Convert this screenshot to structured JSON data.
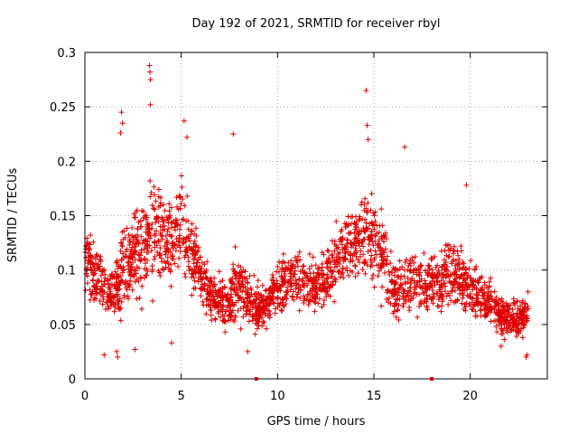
{
  "chart_data": {
    "type": "scatter",
    "title": "Day 192 of 2021, SRMTID for receiver rbyl",
    "xlabel": "GPS time / hours",
    "ylabel": "SRMTID / TECUs",
    "xlim": [
      0,
      24
    ],
    "ylim": [
      0,
      0.3
    ],
    "xticks": [
      "0",
      "5",
      "10",
      "15",
      "20"
    ],
    "xtick_values": [
      0,
      5,
      10,
      15,
      20
    ],
    "yticks": [
      "0",
      "0.05",
      "0.1",
      "0.15",
      "0.2",
      "0.25",
      "0.3"
    ],
    "ytick_values": [
      0,
      0.05,
      0.1,
      0.15,
      0.2,
      0.25,
      0.3
    ],
    "grid": true,
    "legend": "none",
    "marker": "plus",
    "color": "#dd0000",
    "gap_markers_x": [
      8.9,
      18.0
    ],
    "series": [
      {
        "profile_hours": [
          0,
          0.5,
          1,
          1.5,
          2,
          2.5,
          3,
          3.5,
          4,
          4.5,
          5,
          5.5,
          6,
          6.5,
          7,
          7.5,
          8,
          8.5,
          9,
          9.5,
          10,
          10.5,
          11,
          11.5,
          12,
          12.5,
          13,
          13.5,
          14,
          14.5,
          15,
          15.5,
          16,
          16.5,
          17,
          17.5,
          18,
          18.5,
          19,
          19.5,
          20,
          20.5,
          21,
          21.5,
          22,
          22.5,
          23
        ],
        "profile_center": [
          0.11,
          0.095,
          0.085,
          0.08,
          0.1,
          0.11,
          0.12,
          0.13,
          0.135,
          0.13,
          0.14,
          0.12,
          0.095,
          0.08,
          0.07,
          0.07,
          0.085,
          0.07,
          0.065,
          0.07,
          0.085,
          0.09,
          0.095,
          0.09,
          0.085,
          0.09,
          0.11,
          0.12,
          0.125,
          0.13,
          0.13,
          0.11,
          0.085,
          0.08,
          0.09,
          0.09,
          0.09,
          0.09,
          0.095,
          0.09,
          0.085,
          0.075,
          0.07,
          0.06,
          0.055,
          0.055,
          0.06
        ],
        "profile_spread": [
          0.03,
          0.035,
          0.035,
          0.035,
          0.045,
          0.045,
          0.05,
          0.055,
          0.05,
          0.045,
          0.05,
          0.045,
          0.03,
          0.025,
          0.025,
          0.025,
          0.04,
          0.025,
          0.025,
          0.025,
          0.03,
          0.03,
          0.035,
          0.03,
          0.03,
          0.03,
          0.035,
          0.04,
          0.04,
          0.045,
          0.04,
          0.04,
          0.03,
          0.03,
          0.035,
          0.03,
          0.03,
          0.03,
          0.035,
          0.03,
          0.03,
          0.025,
          0.025,
          0.02,
          0.02,
          0.02,
          0.02
        ],
        "spikes": [
          {
            "x": 1.9,
            "y": 0.245
          },
          {
            "x": 1.95,
            "y": 0.235
          },
          {
            "x": 1.85,
            "y": 0.226
          },
          {
            "x": 3.35,
            "y": 0.288
          },
          {
            "x": 3.38,
            "y": 0.282
          },
          {
            "x": 3.4,
            "y": 0.275
          },
          {
            "x": 3.4,
            "y": 0.252
          },
          {
            "x": 5.15,
            "y": 0.237
          },
          {
            "x": 5.3,
            "y": 0.222
          },
          {
            "x": 7.7,
            "y": 0.225
          },
          {
            "x": 14.6,
            "y": 0.265
          },
          {
            "x": 14.65,
            "y": 0.233
          },
          {
            "x": 14.7,
            "y": 0.22
          },
          {
            "x": 16.6,
            "y": 0.213
          },
          {
            "x": 19.8,
            "y": 0.178
          },
          {
            "x": 1.7,
            "y": 0.02
          },
          {
            "x": 1.65,
            "y": 0.025
          },
          {
            "x": 2.6,
            "y": 0.027
          },
          {
            "x": 8.45,
            "y": 0.025
          },
          {
            "x": 21.6,
            "y": 0.03
          },
          {
            "x": 22.9,
            "y": 0.02
          },
          {
            "x": 22.95,
            "y": 0.022
          },
          {
            "x": 1.0,
            "y": 0.022
          },
          {
            "x": 4.5,
            "y": 0.033
          }
        ],
        "x_end": 23.0
      }
    ]
  }
}
